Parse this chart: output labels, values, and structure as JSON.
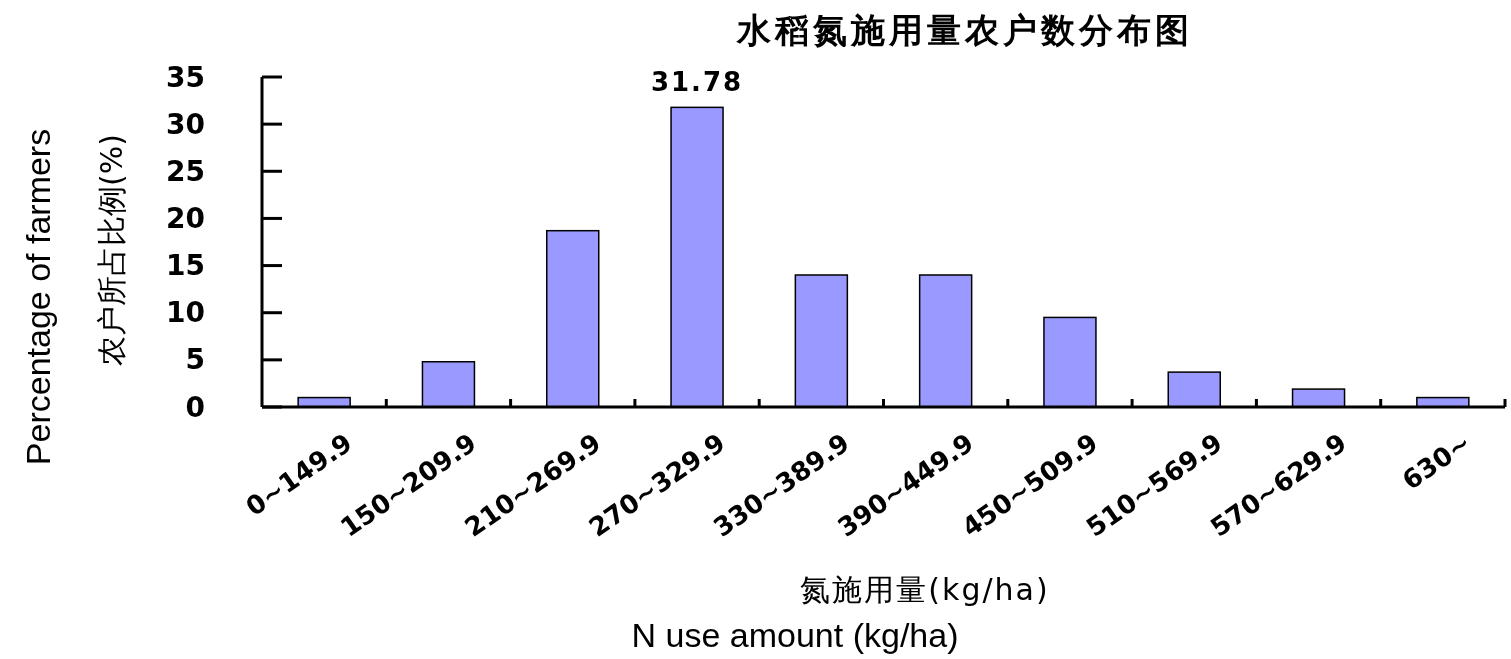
{
  "chart_data": {
    "type": "bar",
    "title": "水稻氮施用量农户数分布图",
    "xlabel": "氮施用量(kg/ha)\nN use amount (kg/ha)",
    "ylabel": "Percentage of farmers\n农户所占比例(%)",
    "categories": [
      "0~149.9",
      "150~209.9",
      "210~269.9",
      "270~329.9",
      "330~389.9",
      "390~449.9",
      "450~509.9",
      "510~569.9",
      "570~629.9",
      "630~"
    ],
    "values": [
      1.0,
      4.8,
      18.7,
      31.78,
      14.0,
      14.0,
      9.5,
      3.7,
      1.9,
      1.0
    ],
    "value_labels": [
      null,
      null,
      null,
      "31.78",
      null,
      null,
      null,
      null,
      null,
      null
    ],
    "color": "#9999ff",
    "ylim": [
      0,
      35
    ],
    "yticks": [
      0,
      5,
      10,
      15,
      20,
      25,
      30,
      35
    ],
    "grid": false
  }
}
